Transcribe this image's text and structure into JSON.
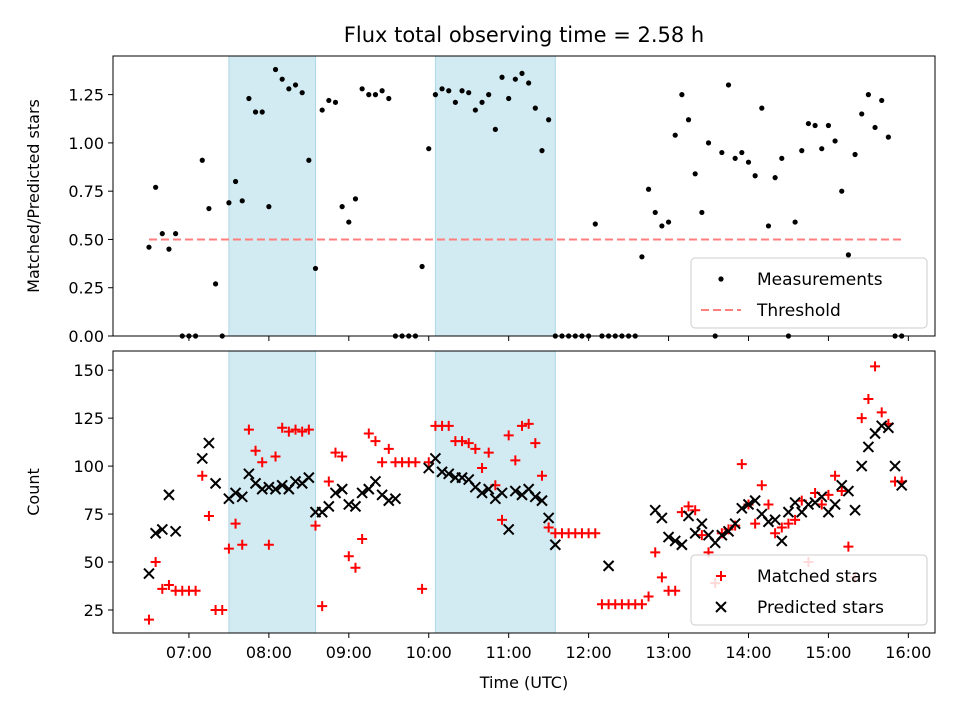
{
  "title": "Flux total observing time = 2.58 h",
  "colors": {
    "measurement": "#000000",
    "threshold": "#ff7f7f",
    "matched": "#ff0000",
    "predicted": "#000000",
    "span": "#add8e6"
  },
  "chart_data": [
    {
      "type": "scatter",
      "ylabel": "Matched/Predicted stars",
      "xlabel": "",
      "ylim": [
        0,
        1.45
      ],
      "yticks": [
        "0.00",
        "0.25",
        "0.50",
        "0.75",
        "1.00",
        "1.25"
      ],
      "legend": {
        "position": "bottom-right",
        "entries": [
          "Measurements",
          "Threshold"
        ]
      },
      "threshold": {
        "value": 0.5,
        "x_start": "06:30",
        "x_end": "15:55"
      },
      "shaded_spans": [
        [
          "07:30",
          "08:35"
        ],
        [
          "10:05",
          "11:35"
        ]
      ],
      "series": [
        {
          "name": "Measurements",
          "x": [
            "06:30",
            "06:35",
            "06:40",
            "06:45",
            "06:50",
            "06:55",
            "07:00",
            "07:05",
            "07:10",
            "07:15",
            "07:20",
            "07:25",
            "07:30",
            "07:35",
            "07:40",
            "07:45",
            "07:50",
            "07:55",
            "08:00",
            "08:05",
            "08:10",
            "08:15",
            "08:20",
            "08:25",
            "08:30",
            "08:35",
            "08:40",
            "08:45",
            "08:50",
            "08:55",
            "09:00",
            "09:05",
            "09:10",
            "09:15",
            "09:20",
            "09:25",
            "09:30",
            "09:35",
            "09:40",
            "09:45",
            "09:50",
            "09:55",
            "10:00",
            "10:05",
            "10:10",
            "10:15",
            "10:20",
            "10:25",
            "10:30",
            "10:35",
            "10:40",
            "10:45",
            "10:50",
            "10:55",
            "11:00",
            "11:05",
            "11:10",
            "11:15",
            "11:20",
            "11:25",
            "11:30",
            "11:35",
            "11:40",
            "11:45",
            "11:50",
            "11:55",
            "12:00",
            "12:05",
            "12:10",
            "12:15",
            "12:20",
            "12:25",
            "12:30",
            "12:35",
            "12:40",
            "12:45",
            "12:50",
            "12:55",
            "13:00",
            "13:05",
            "13:10",
            "13:15",
            "13:20",
            "13:25",
            "13:30",
            "13:35",
            "13:40",
            "13:45",
            "13:50",
            "13:55",
            "14:00",
            "14:05",
            "14:10",
            "14:15",
            "14:20",
            "14:25",
            "14:30",
            "14:35",
            "14:40",
            "14:45",
            "14:50",
            "14:55",
            "15:00",
            "15:05",
            "15:10",
            "15:15",
            "15:20",
            "15:25",
            "15:30",
            "15:35",
            "15:40",
            "15:45",
            "15:50",
            "15:55"
          ],
          "y": [
            0.46,
            0.77,
            0.53,
            0.45,
            0.53,
            0.0,
            0.0,
            0.0,
            0.91,
            0.66,
            0.27,
            0.0,
            0.69,
            0.8,
            0.7,
            1.23,
            1.16,
            1.16,
            0.67,
            1.38,
            1.33,
            1.28,
            1.3,
            1.26,
            0.91,
            0.35,
            1.17,
            1.22,
            1.21,
            0.67,
            0.59,
            0.71,
            1.28,
            1.25,
            1.25,
            1.27,
            1.23,
            0.0,
            0.0,
            0.0,
            0.0,
            0.36,
            0.97,
            1.25,
            1.28,
            1.27,
            1.21,
            1.27,
            1.26,
            1.17,
            1.21,
            1.25,
            1.07,
            1.34,
            1.23,
            1.33,
            1.36,
            1.31,
            1.18,
            0.96,
            1.12,
            0.0,
            0.0,
            0.0,
            0.0,
            0.0,
            0.0,
            0.58,
            0.0,
            0.0,
            0.0,
            0.0,
            0.0,
            0.0,
            0.41,
            0.76,
            0.64,
            0.57,
            0.59,
            1.04,
            1.25,
            1.12,
            0.84,
            0.64,
            1.0,
            0.0,
            0.95,
            1.3,
            0.92,
            0.95,
            0.9,
            0.83,
            1.18,
            0.57,
            0.82,
            0.92,
            0.0,
            0.59,
            0.96,
            1.1,
            1.09,
            0.97,
            1.09,
            1.01,
            0.75,
            0.42,
            0.94,
            1.15,
            1.25,
            1.08,
            1.22,
            1.03,
            0.0,
            0.0
          ]
        }
      ]
    },
    {
      "type": "scatter",
      "ylabel": "Count",
      "xlabel": "Time (UTC)",
      "ylim": [
        13,
        160
      ],
      "yticks": [
        "25",
        "50",
        "75",
        "100",
        "125",
        "150"
      ],
      "xticks": [
        "07:00",
        "08:00",
        "09:00",
        "10:00",
        "11:00",
        "12:00",
        "13:00",
        "14:00",
        "15:00",
        "16:00"
      ],
      "legend": {
        "position": "bottom-right",
        "entries": [
          "Matched stars",
          "Predicted stars"
        ]
      },
      "shaded_spans": [
        [
          "07:30",
          "08:35"
        ],
        [
          "10:05",
          "11:35"
        ]
      ],
      "series": [
        {
          "name": "Matched stars",
          "marker": "plus",
          "x": [
            "06:30",
            "06:35",
            "06:40",
            "06:45",
            "06:50",
            "06:55",
            "07:00",
            "07:05",
            "07:10",
            "07:15",
            "07:20",
            "07:25",
            "07:30",
            "07:35",
            "07:40",
            "07:45",
            "07:50",
            "07:55",
            "08:00",
            "08:05",
            "08:10",
            "08:15",
            "08:20",
            "08:25",
            "08:30",
            "08:35",
            "08:40",
            "08:45",
            "08:50",
            "08:55",
            "09:00",
            "09:05",
            "09:10",
            "09:15",
            "09:20",
            "09:25",
            "09:30",
            "09:35",
            "09:40",
            "09:45",
            "09:50",
            "09:55",
            "10:00",
            "10:05",
            "10:10",
            "10:15",
            "10:20",
            "10:25",
            "10:30",
            "10:35",
            "10:40",
            "10:45",
            "10:50",
            "10:55",
            "11:00",
            "11:05",
            "11:10",
            "11:15",
            "11:20",
            "11:25",
            "11:30",
            "11:35",
            "11:40",
            "11:45",
            "11:50",
            "11:55",
            "12:00",
            "12:05",
            "12:10",
            "12:15",
            "12:20",
            "12:25",
            "12:30",
            "12:35",
            "12:40",
            "12:45",
            "12:50",
            "12:55",
            "13:00",
            "13:05",
            "13:10",
            "13:15",
            "13:20",
            "13:25",
            "13:30",
            "13:35",
            "13:40",
            "13:45",
            "13:50",
            "13:55",
            "14:00",
            "14:05",
            "14:10",
            "14:15",
            "14:20",
            "14:25",
            "14:30",
            "14:35",
            "14:40",
            "14:45",
            "14:50",
            "14:55",
            "15:00",
            "15:05",
            "15:10",
            "15:15",
            "15:20",
            "15:25",
            "15:30",
            "15:35",
            "15:40",
            "15:45",
            "15:50",
            "15:55"
          ],
          "y": [
            20,
            50,
            36,
            38,
            35,
            35,
            35,
            35,
            95,
            74,
            25,
            25,
            57,
            70,
            59,
            119,
            108,
            102,
            59,
            105,
            120,
            118,
            119,
            118,
            119,
            69,
            27,
            92,
            107,
            105,
            53,
            47,
            62,
            117,
            113,
            102,
            109,
            102,
            102,
            102,
            102,
            36,
            102,
            121,
            121,
            121,
            113,
            113,
            112,
            109,
            99,
            107,
            90,
            72,
            116,
            103,
            121,
            122,
            112,
            95,
            68,
            65,
            65,
            65,
            65,
            65,
            65,
            65,
            28,
            28,
            28,
            28,
            28,
            28,
            28,
            32,
            55,
            42,
            35,
            35,
            76,
            79,
            77,
            64,
            55,
            39,
            65,
            67,
            69,
            101,
            80,
            70,
            90,
            80,
            65,
            68,
            70,
            72,
            82,
            50,
            86,
            80,
            85,
            95,
            87,
            58,
            42,
            125,
            135,
            152,
            128,
            122,
            92,
            92
          ]
        },
        {
          "name": "Predicted stars",
          "marker": "x",
          "x": [
            "06:30",
            "06:35",
            "06:40",
            "06:45",
            "06:50",
            "07:10",
            "07:15",
            "07:20",
            "07:30",
            "07:35",
            "07:40",
            "07:45",
            "07:50",
            "07:55",
            "08:00",
            "08:05",
            "08:10",
            "08:15",
            "08:20",
            "08:25",
            "08:30",
            "08:35",
            "08:40",
            "08:45",
            "08:50",
            "08:55",
            "09:00",
            "09:05",
            "09:10",
            "09:15",
            "09:20",
            "09:25",
            "09:30",
            "09:35",
            "10:00",
            "10:05",
            "10:10",
            "10:15",
            "10:20",
            "10:25",
            "10:30",
            "10:35",
            "10:40",
            "10:45",
            "10:50",
            "10:55",
            "11:00",
            "11:05",
            "11:10",
            "11:15",
            "11:20",
            "11:25",
            "11:30",
            "11:35",
            "12:15",
            "12:50",
            "12:55",
            "13:00",
            "13:05",
            "13:10",
            "13:15",
            "13:20",
            "13:25",
            "13:30",
            "13:35",
            "13:40",
            "13:45",
            "13:50",
            "13:55",
            "14:00",
            "14:05",
            "14:10",
            "14:15",
            "14:20",
            "14:25",
            "14:30",
            "14:35",
            "14:40",
            "14:45",
            "14:50",
            "14:55",
            "15:00",
            "15:05",
            "15:10",
            "15:15",
            "15:20",
            "15:25",
            "15:30",
            "15:35",
            "15:40",
            "15:45",
            "15:50",
            "15:55"
          ],
          "y": [
            44,
            65,
            67,
            85,
            66,
            104,
            112,
            91,
            83,
            86,
            84,
            96,
            91,
            88,
            89,
            88,
            90,
            88,
            92,
            91,
            94,
            76,
            76,
            79,
            86,
            88,
            80,
            79,
            86,
            88,
            92,
            85,
            82,
            83,
            99,
            104,
            97,
            96,
            94,
            94,
            93,
            89,
            86,
            88,
            83,
            86,
            67,
            87,
            85,
            88,
            84,
            82,
            73,
            59,
            48,
            77,
            73,
            63,
            61,
            59,
            74,
            65,
            70,
            64,
            60,
            64,
            66,
            70,
            78,
            80,
            82,
            75,
            71,
            72,
            61,
            76,
            81,
            76,
            80,
            81,
            84,
            76,
            80,
            90,
            87,
            77,
            100,
            110,
            117,
            121,
            120,
            100,
            90
          ]
        }
      ]
    }
  ]
}
